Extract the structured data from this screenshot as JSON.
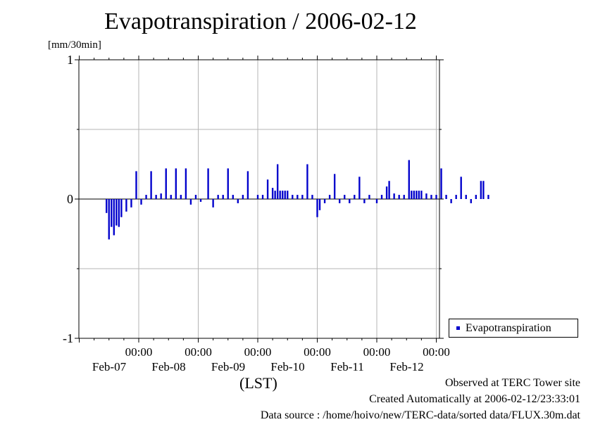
{
  "page": {
    "title": "Evapotranspiration / 2006-02-12",
    "unit_label": "[mm/30min]"
  },
  "chart_data": {
    "type": "bar",
    "title": "Evapotranspiration / 2006-02-12",
    "ylabel": "[mm/30min]",
    "xlabel": "(LST)",
    "ylim": [
      -1,
      1
    ],
    "yticks": [
      "1",
      "0",
      "-1"
    ],
    "xticks": [
      {
        "time": "00:00",
        "date": "Feb-07"
      },
      {
        "time": "00:00",
        "date": "Feb-08"
      },
      {
        "time": "00:00",
        "date": "Feb-09"
      },
      {
        "time": "00:00",
        "date": "Feb-10"
      },
      {
        "time": "00:00",
        "date": "Feb-11"
      },
      {
        "time": "00:00",
        "date": "Feb-12"
      }
    ],
    "grid": true,
    "legend_position": "right",
    "series": [
      {
        "name": "Evapotranspiration",
        "color": "#0000cc",
        "interval": "30min",
        "points": [
          [
            "2006-02-06 11:00",
            -0.1
          ],
          [
            "2006-02-06 12:00",
            -0.29
          ],
          [
            "2006-02-06 13:00",
            -0.2
          ],
          [
            "2006-02-06 14:00",
            -0.26
          ],
          [
            "2006-02-06 15:00",
            -0.19
          ],
          [
            "2006-02-06 16:00",
            -0.2
          ],
          [
            "2006-02-06 17:00",
            -0.13
          ],
          [
            "2006-02-06 19:00",
            -0.09
          ],
          [
            "2006-02-06 21:00",
            -0.06
          ],
          [
            "2006-02-06 23:00",
            0.2
          ],
          [
            "2006-02-07 01:00",
            -0.04
          ],
          [
            "2006-02-07 03:00",
            0.03
          ],
          [
            "2006-02-07 05:00",
            0.2
          ],
          [
            "2006-02-07 07:00",
            0.03
          ],
          [
            "2006-02-07 09:00",
            0.04
          ],
          [
            "2006-02-07 11:00",
            0.22
          ],
          [
            "2006-02-07 13:00",
            0.03
          ],
          [
            "2006-02-07 15:00",
            0.22
          ],
          [
            "2006-02-07 17:00",
            0.03
          ],
          [
            "2006-02-07 19:00",
            0.22
          ],
          [
            "2006-02-07 21:00",
            -0.04
          ],
          [
            "2006-02-07 23:00",
            0.03
          ],
          [
            "2006-02-08 01:00",
            -0.02
          ],
          [
            "2006-02-08 04:00",
            0.22
          ],
          [
            "2006-02-08 06:00",
            -0.06
          ],
          [
            "2006-02-08 08:00",
            0.03
          ],
          [
            "2006-02-08 10:00",
            0.03
          ],
          [
            "2006-02-08 12:00",
            0.22
          ],
          [
            "2006-02-08 14:00",
            0.03
          ],
          [
            "2006-02-08 16:00",
            -0.03
          ],
          [
            "2006-02-08 18:00",
            0.03
          ],
          [
            "2006-02-08 20:00",
            0.2
          ],
          [
            "2006-02-09 00:00",
            0.03
          ],
          [
            "2006-02-09 02:00",
            0.03
          ],
          [
            "2006-02-09 04:00",
            0.14
          ],
          [
            "2006-02-09 06:00",
            0.08
          ],
          [
            "2006-02-09 07:00",
            0.06
          ],
          [
            "2006-02-09 08:00",
            0.25
          ],
          [
            "2006-02-09 09:00",
            0.06
          ],
          [
            "2006-02-09 10:00",
            0.06
          ],
          [
            "2006-02-09 11:00",
            0.06
          ],
          [
            "2006-02-09 12:00",
            0.06
          ],
          [
            "2006-02-09 14:00",
            0.03
          ],
          [
            "2006-02-09 16:00",
            0.03
          ],
          [
            "2006-02-09 18:00",
            0.03
          ],
          [
            "2006-02-09 20:00",
            0.25
          ],
          [
            "2006-02-09 22:00",
            0.03
          ],
          [
            "2006-02-10 00:00",
            -0.13
          ],
          [
            "2006-02-10 01:00",
            -0.08
          ],
          [
            "2006-02-10 03:00",
            -0.03
          ],
          [
            "2006-02-10 05:00",
            0.03
          ],
          [
            "2006-02-10 07:00",
            0.18
          ],
          [
            "2006-02-10 09:00",
            -0.03
          ],
          [
            "2006-02-10 11:00",
            0.03
          ],
          [
            "2006-02-10 13:00",
            -0.03
          ],
          [
            "2006-02-10 15:00",
            0.03
          ],
          [
            "2006-02-10 17:00",
            0.16
          ],
          [
            "2006-02-10 19:00",
            -0.03
          ],
          [
            "2006-02-10 21:00",
            0.03
          ],
          [
            "2006-02-11 00:00",
            -0.03
          ],
          [
            "2006-02-11 02:00",
            0.03
          ],
          [
            "2006-02-11 04:00",
            0.09
          ],
          [
            "2006-02-11 05:00",
            0.13
          ],
          [
            "2006-02-11 07:00",
            0.04
          ],
          [
            "2006-02-11 09:00",
            0.03
          ],
          [
            "2006-02-11 11:00",
            0.03
          ],
          [
            "2006-02-11 13:00",
            0.28
          ],
          [
            "2006-02-11 14:00",
            0.06
          ],
          [
            "2006-02-11 15:00",
            0.06
          ],
          [
            "2006-02-11 16:00",
            0.06
          ],
          [
            "2006-02-11 17:00",
            0.06
          ],
          [
            "2006-02-11 18:00",
            0.06
          ],
          [
            "2006-02-11 20:00",
            0.04
          ],
          [
            "2006-02-11 22:00",
            0.03
          ],
          [
            "2006-02-12 00:00",
            0.03
          ],
          [
            "2006-02-12 02:00",
            0.22
          ],
          [
            "2006-02-12 04:00",
            0.03
          ],
          [
            "2006-02-12 06:00",
            -0.03
          ],
          [
            "2006-02-12 08:00",
            0.03
          ],
          [
            "2006-02-12 10:00",
            0.16
          ],
          [
            "2006-02-12 12:00",
            0.03
          ],
          [
            "2006-02-12 14:00",
            -0.03
          ],
          [
            "2006-02-12 16:00",
            0.03
          ],
          [
            "2006-02-12 18:00",
            0.13
          ],
          [
            "2006-02-12 19:00",
            0.13
          ],
          [
            "2006-02-12 21:00",
            0.03
          ]
        ]
      }
    ]
  },
  "footer": {
    "line1": "Observed at TERC Tower site",
    "line2": "Created Automatically at 2006-02-12/23:33:01",
    "line3": "Data source : /home/hoivo/new/TERC-data/sorted  data/FLUX.30m.dat"
  }
}
